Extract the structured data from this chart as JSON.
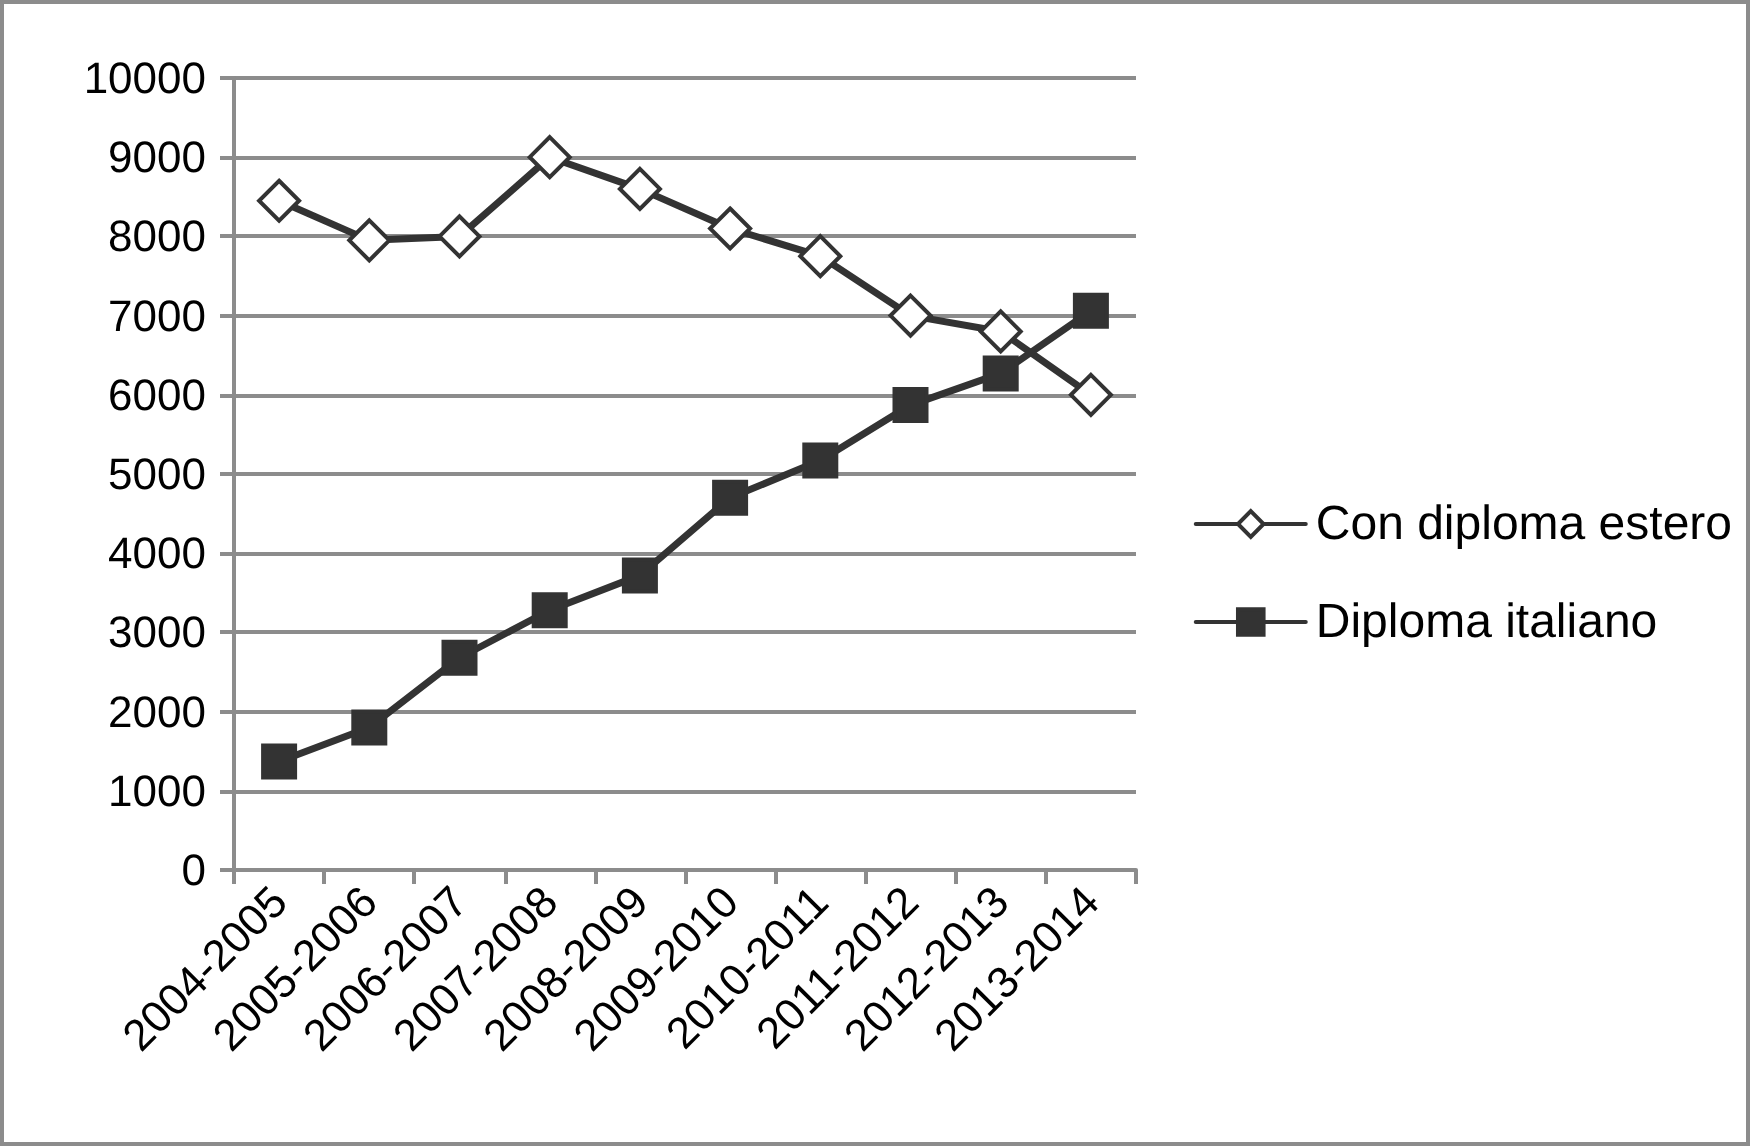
{
  "chart_data": {
    "type": "line",
    "categories": [
      "2004-2005",
      "2005-2006",
      "2006-2007",
      "2007-2008",
      "2008-2009",
      "2009-2010",
      "2010-2011",
      "2011-2012",
      "2012-2013",
      "2013-2014"
    ],
    "series": [
      {
        "name": "Con diploma estero",
        "color": "#333333",
        "marker": "diamond",
        "values": [
          8450,
          7950,
          8000,
          9000,
          8600,
          8100,
          7750,
          7000,
          6800,
          6000
        ]
      },
      {
        "name": "Diploma italiano",
        "color": "#333333",
        "marker": "square",
        "values": [
          1370,
          1800,
          2680,
          3280,
          3720,
          4700,
          5170,
          5870,
          6270,
          7060
        ]
      }
    ],
    "ylim": [
      0,
      10000
    ],
    "yticks": [
      0,
      1000,
      2000,
      3000,
      4000,
      5000,
      6000,
      7000,
      8000,
      9000,
      10000
    ],
    "grid": "y",
    "legend": "right",
    "line_style": "solid"
  }
}
